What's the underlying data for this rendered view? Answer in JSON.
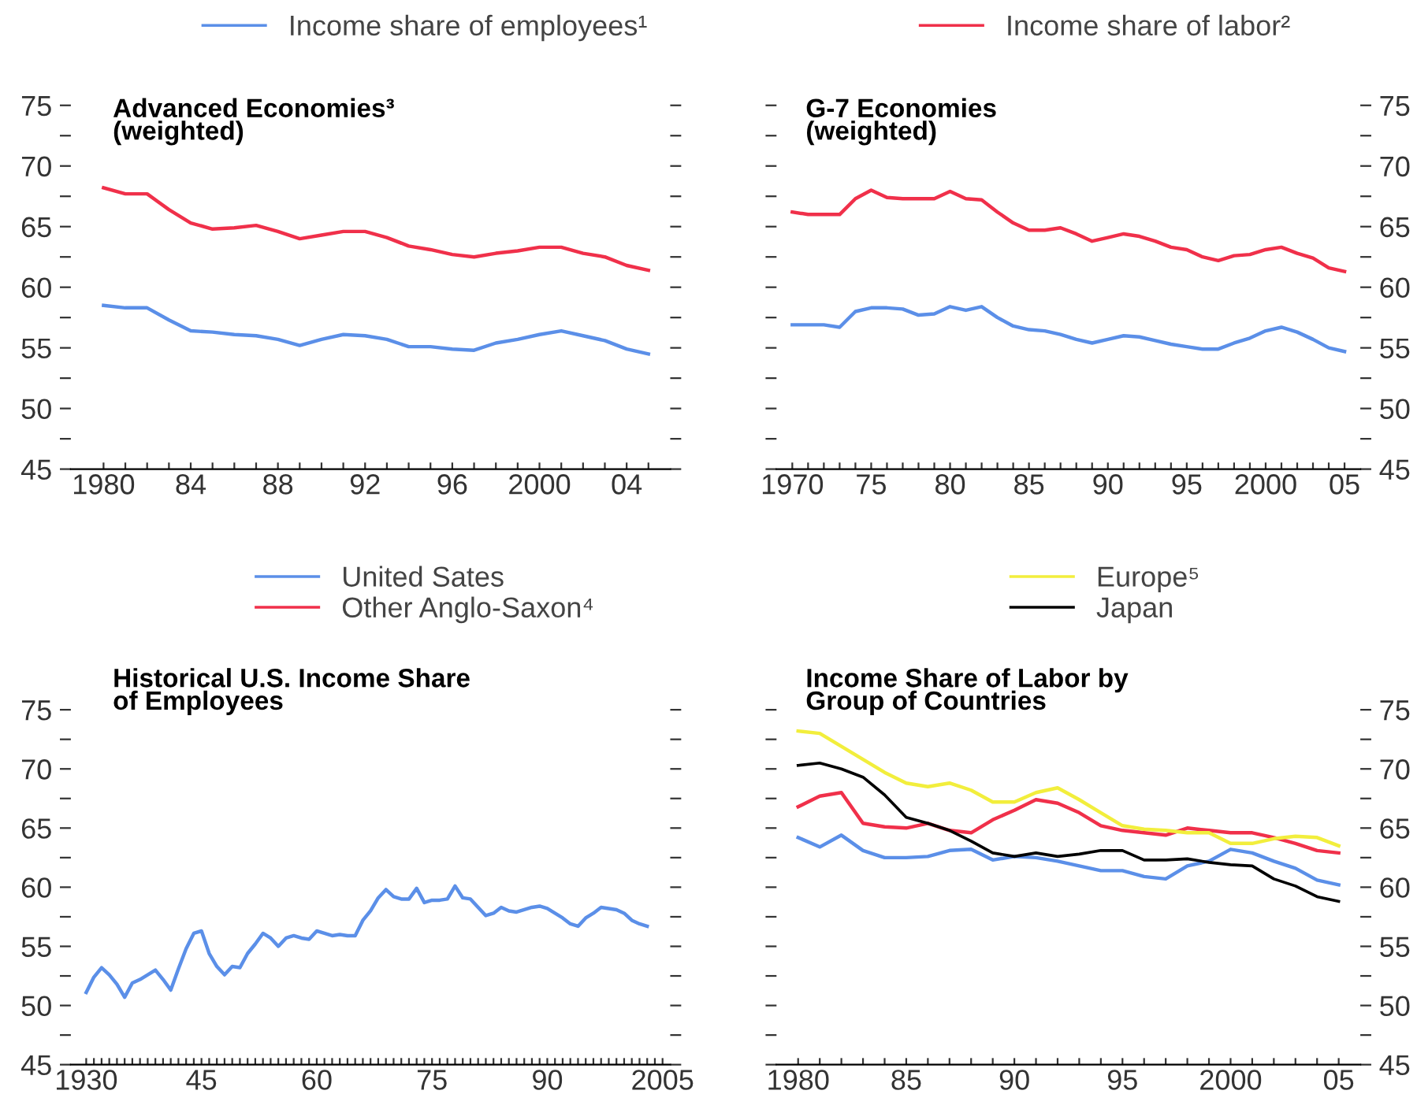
{
  "chart_data": [
    {
      "type": "line",
      "title": "Advanced Economies³\n(weighted)",
      "legend": "top",
      "x": [
        1980,
        1981,
        1982,
        1983,
        1984,
        1985,
        1986,
        1987,
        1988,
        1989,
        1990,
        1991,
        1992,
        1993,
        1994,
        1995,
        1996,
        1997,
        1998,
        1999,
        2000,
        2001,
        2002,
        2003,
        2004,
        2005
      ],
      "series": [
        {
          "name": "Income share of employees¹",
          "color": "#5b8fe8",
          "values": [
            58.5,
            58.3,
            58.3,
            57.3,
            56.4,
            56.3,
            56.1,
            56.0,
            55.7,
            55.2,
            55.7,
            56.1,
            56.0,
            55.7,
            55.1,
            55.1,
            54.9,
            54.8,
            55.4,
            55.7,
            56.1,
            56.4,
            56.0,
            55.6,
            54.9,
            54.5
          ]
        },
        {
          "name": "Income share of labor²",
          "color": "#f0304a",
          "values": [
            68.2,
            67.7,
            67.7,
            66.4,
            65.3,
            64.8,
            64.9,
            65.1,
            64.6,
            64.0,
            64.3,
            64.6,
            64.6,
            64.1,
            63.4,
            63.1,
            62.7,
            62.5,
            62.8,
            63.0,
            63.3,
            63.3,
            62.8,
            62.5,
            61.8,
            61.4
          ]
        }
      ],
      "xlim": [
        1978.5,
        2006
      ],
      "xticks": [
        1980,
        {
          "value": 1981,
          "label": null
        },
        {
          "value": 1982,
          "label": null
        },
        {
          "value": 1983,
          "label": null
        },
        {
          "value": 1984,
          "label": "84"
        },
        {
          "value": 1985,
          "label": null
        },
        {
          "value": 1986,
          "label": null
        },
        {
          "value": 1987,
          "label": null
        },
        {
          "value": 1988,
          "label": "88"
        },
        {
          "value": 1989,
          "label": null
        },
        {
          "value": 1990,
          "label": null
        },
        {
          "value": 1991,
          "label": null
        },
        {
          "value": 1992,
          "label": "92"
        },
        {
          "value": 1993,
          "label": null
        },
        {
          "value": 1994,
          "label": null
        },
        {
          "value": 1995,
          "label": null
        },
        {
          "value": 1996,
          "label": "96"
        },
        {
          "value": 1997,
          "label": null
        },
        {
          "value": 1998,
          "label": null
        },
        {
          "value": 1999,
          "label": null
        },
        2000,
        {
          "value": 2001,
          "label": null
        },
        {
          "value": 2002,
          "label": null
        },
        {
          "value": 2003,
          "label": null
        },
        {
          "value": 2004,
          "label": "04"
        },
        {
          "value": 2005,
          "label": null
        }
      ],
      "ylim": [
        45,
        75
      ],
      "yticks": [
        45,
        {
          "value": 47.5,
          "label": null
        },
        50,
        {
          "value": 52.5,
          "label": null
        },
        55,
        {
          "value": 57.5,
          "label": null
        },
        60,
        {
          "value": 62.5,
          "label": null
        },
        65,
        {
          "value": 67.5,
          "label": null
        },
        70,
        {
          "value": 72.5,
          "label": null
        },
        75
      ]
    },
    {
      "type": "line",
      "title": "G-7 Economies\n(weighted)",
      "x": [
        1970,
        1971,
        1972,
        1973,
        1974,
        1975,
        1976,
        1977,
        1978,
        1979,
        1980,
        1981,
        1982,
        1983,
        1984,
        1985,
        1986,
        1987,
        1988,
        1989,
        1990,
        1991,
        1992,
        1993,
        1994,
        1995,
        1996,
        1997,
        1998,
        1999,
        2000,
        2001,
        2002,
        2003,
        2004,
        2005
      ],
      "series": [
        {
          "color": "#5b8fe8",
          "values": [
            56.9,
            56.9,
            56.9,
            56.7,
            58.0,
            58.3,
            58.3,
            58.2,
            57.7,
            57.8,
            58.4,
            58.1,
            58.4,
            57.5,
            56.8,
            56.5,
            56.4,
            56.1,
            55.7,
            55.4,
            55.7,
            56.0,
            55.9,
            55.6,
            55.3,
            55.1,
            54.9,
            54.9,
            55.4,
            55.8,
            56.4,
            56.7,
            56.3,
            55.7,
            55.0,
            54.7
          ]
        },
        {
          "color": "#f0304a",
          "values": [
            66.2,
            66.0,
            66.0,
            66.0,
            67.3,
            68.0,
            67.4,
            67.3,
            67.3,
            67.3,
            67.9,
            67.3,
            67.2,
            66.2,
            65.3,
            64.7,
            64.7,
            64.9,
            64.4,
            63.8,
            64.1,
            64.4,
            64.2,
            63.8,
            63.3,
            63.1,
            62.5,
            62.2,
            62.6,
            62.7,
            63.1,
            63.3,
            62.8,
            62.4,
            61.6,
            61.3
          ]
        }
      ],
      "xlim": [
        1969,
        2006
      ],
      "xticks": [
        1970,
        {
          "value": 1971,
          "label": null
        },
        {
          "value": 1972,
          "label": null
        },
        {
          "value": 1973,
          "label": null
        },
        {
          "value": 1974,
          "label": null
        },
        {
          "value": 1975,
          "label": "75"
        },
        {
          "value": 1976,
          "label": null
        },
        {
          "value": 1977,
          "label": null
        },
        {
          "value": 1978,
          "label": null
        },
        {
          "value": 1979,
          "label": null
        },
        {
          "value": 1980,
          "label": "80"
        },
        {
          "value": 1981,
          "label": null
        },
        {
          "value": 1982,
          "label": null
        },
        {
          "value": 1983,
          "label": null
        },
        {
          "value": 1984,
          "label": null
        },
        {
          "value": 1985,
          "label": "85"
        },
        {
          "value": 1986,
          "label": null
        },
        {
          "value": 1987,
          "label": null
        },
        {
          "value": 1988,
          "label": null
        },
        {
          "value": 1989,
          "label": null
        },
        {
          "value": 1990,
          "label": "90"
        },
        {
          "value": 1991,
          "label": null
        },
        {
          "value": 1992,
          "label": null
        },
        {
          "value": 1993,
          "label": null
        },
        {
          "value": 1994,
          "label": null
        },
        {
          "value": 1995,
          "label": "95"
        },
        {
          "value": 1996,
          "label": null
        },
        {
          "value": 1997,
          "label": null
        },
        {
          "value": 1998,
          "label": null
        },
        {
          "value": 1999,
          "label": null
        },
        2000,
        {
          "value": 2001,
          "label": null
        },
        {
          "value": 2002,
          "label": null
        },
        {
          "value": 2003,
          "label": null
        },
        {
          "value": 2004,
          "label": null
        },
        {
          "value": 2005,
          "label": "05"
        }
      ],
      "ylim": [
        45,
        75
      ],
      "yticks": [
        45,
        {
          "value": 47.5,
          "label": null
        },
        50,
        {
          "value": 52.5,
          "label": null
        },
        55,
        {
          "value": 57.5,
          "label": null
        },
        60,
        {
          "value": 62.5,
          "label": null
        },
        65,
        {
          "value": 67.5,
          "label": null
        },
        70,
        {
          "value": 72.5,
          "label": null
        },
        75
      ]
    },
    {
      "type": "line",
      "title": "Historical U.S. Income Share\nof Employees",
      "x": [
        1930,
        1931,
        1932,
        1933,
        1934,
        1935,
        1936,
        1937,
        1938,
        1939,
        1940,
        1941,
        1942,
        1943,
        1944,
        1945,
        1946,
        1947,
        1948,
        1949,
        1950,
        1951,
        1952,
        1953,
        1954,
        1955,
        1956,
        1957,
        1958,
        1959,
        1960,
        1961,
        1962,
        1963,
        1964,
        1965,
        1966,
        1967,
        1968,
        1969,
        1970,
        1971,
        1972,
        1973,
        1974,
        1975,
        1976,
        1977,
        1978,
        1979,
        1980,
        1981,
        1982,
        1983,
        1984,
        1985,
        1986,
        1987,
        1988,
        1989,
        1990,
        1991,
        1992,
        1993,
        1994,
        1995,
        1996,
        1997,
        1998,
        1999,
        2000,
        2001,
        2002,
        2003
      ],
      "series": [
        {
          "color": "#5b8fe8",
          "values": [
            51.1,
            52.4,
            53.2,
            52.6,
            51.8,
            50.7,
            51.9,
            52.2,
            52.6,
            53.0,
            52.2,
            51.3,
            53.1,
            54.8,
            56.1,
            56.3,
            54.4,
            53.3,
            52.6,
            53.3,
            53.2,
            54.4,
            55.2,
            56.1,
            55.7,
            55.0,
            55.7,
            55.9,
            55.7,
            55.6,
            56.3,
            56.1,
            55.9,
            56.0,
            55.9,
            55.9,
            57.2,
            58.0,
            59.1,
            59.8,
            59.2,
            59.0,
            59.0,
            59.9,
            58.7,
            58.9,
            58.9,
            59.0,
            60.1,
            59.1,
            59.0,
            58.3,
            57.6,
            57.8,
            58.3,
            58.0,
            57.9,
            58.1,
            58.3,
            58.4,
            58.2,
            57.8,
            57.4,
            56.9,
            56.7,
            57.4,
            57.8,
            58.3,
            58.2,
            58.1,
            57.8,
            57.2,
            56.9,
            56.7
          ]
        }
      ],
      "xlim": [
        1928,
        2006
      ],
      "xticks": [
        1930,
        {
          "value": 1931,
          "label": null
        },
        {
          "value": 1932,
          "label": null
        },
        {
          "value": 1933,
          "label": null
        },
        {
          "value": 1934,
          "label": null
        },
        {
          "value": 1935,
          "label": null
        },
        {
          "value": 1936,
          "label": null
        },
        {
          "value": 1937,
          "label": null
        },
        {
          "value": 1938,
          "label": null
        },
        {
          "value": 1939,
          "label": null
        },
        {
          "value": 1940,
          "label": null
        },
        {
          "value": 1941,
          "label": null
        },
        {
          "value": 1942,
          "label": null
        },
        {
          "value": 1943,
          "label": null
        },
        {
          "value": 1944,
          "label": null
        },
        {
          "value": 1945,
          "label": "45"
        },
        {
          "value": 1946,
          "label": null
        },
        {
          "value": 1947,
          "label": null
        },
        {
          "value": 1948,
          "label": null
        },
        {
          "value": 1949,
          "label": null
        },
        {
          "value": 1950,
          "label": null
        },
        {
          "value": 1951,
          "label": null
        },
        {
          "value": 1952,
          "label": null
        },
        {
          "value": 1953,
          "label": null
        },
        {
          "value": 1954,
          "label": null
        },
        {
          "value": 1955,
          "label": null
        },
        {
          "value": 1956,
          "label": null
        },
        {
          "value": 1957,
          "label": null
        },
        {
          "value": 1958,
          "label": null
        },
        {
          "value": 1959,
          "label": null
        },
        {
          "value": 1960,
          "label": "60"
        },
        {
          "value": 1961,
          "label": null
        },
        {
          "value": 1962,
          "label": null
        },
        {
          "value": 1963,
          "label": null
        },
        {
          "value": 1964,
          "label": null
        },
        {
          "value": 1965,
          "label": null
        },
        {
          "value": 1966,
          "label": null
        },
        {
          "value": 1967,
          "label": null
        },
        {
          "value": 1968,
          "label": null
        },
        {
          "value": 1969,
          "label": null
        },
        {
          "value": 1970,
          "label": null
        },
        {
          "value": 1971,
          "label": null
        },
        {
          "value": 1972,
          "label": null
        },
        {
          "value": 1973,
          "label": null
        },
        {
          "value": 1974,
          "label": null
        },
        {
          "value": 1975,
          "label": "75"
        },
        {
          "value": 1976,
          "label": null
        },
        {
          "value": 1977,
          "label": null
        },
        {
          "value": 1978,
          "label": null
        },
        {
          "value": 1979,
          "label": null
        },
        {
          "value": 1980,
          "label": null
        },
        {
          "value": 1981,
          "label": null
        },
        {
          "value": 1982,
          "label": null
        },
        {
          "value": 1983,
          "label": null
        },
        {
          "value": 1984,
          "label": null
        },
        {
          "value": 1985,
          "label": null
        },
        {
          "value": 1986,
          "label": null
        },
        {
          "value": 1987,
          "label": null
        },
        {
          "value": 1988,
          "label": null
        },
        {
          "value": 1989,
          "label": null
        },
        {
          "value": 1990,
          "label": "90"
        },
        {
          "value": 1991,
          "label": null
        },
        {
          "value": 1992,
          "label": null
        },
        {
          "value": 1993,
          "label": null
        },
        {
          "value": 1994,
          "label": null
        },
        {
          "value": 1995,
          "label": null
        },
        {
          "value": 1996,
          "label": null
        },
        {
          "value": 1997,
          "label": null
        },
        {
          "value": 1998,
          "label": null
        },
        {
          "value": 1999,
          "label": null
        },
        {
          "value": 2000,
          "label": null
        },
        {
          "value": 2001,
          "label": null
        },
        {
          "value": 2002,
          "label": null
        },
        {
          "value": 2003,
          "label": null
        },
        {
          "value": 2004,
          "label": null
        },
        2005
      ],
      "ylim": [
        45,
        75
      ],
      "yticks": [
        45,
        {
          "value": 47.5,
          "label": null
        },
        50,
        {
          "value": 52.5,
          "label": null
        },
        55,
        {
          "value": 57.5,
          "label": null
        },
        60,
        {
          "value": 62.5,
          "label": null
        },
        65,
        {
          "value": 67.5,
          "label": null
        },
        70,
        {
          "value": 72.5,
          "label": null
        },
        75
      ]
    },
    {
      "type": "line",
      "title": "Income Share of Labor by\nGroup of Countries",
      "legend": "top",
      "x": [
        1980,
        1981,
        1982,
        1983,
        1984,
        1985,
        1986,
        1987,
        1988,
        1989,
        1990,
        1991,
        1992,
        1993,
        1994,
        1995,
        1996,
        1997,
        1998,
        1999,
        2000,
        2001,
        2002,
        2003,
        2004,
        2005
      ],
      "series": [
        {
          "name": "United Sates",
          "color": "#5b8fe8",
          "values": [
            64.2,
            63.4,
            64.4,
            63.1,
            62.5,
            62.5,
            62.6,
            63.1,
            63.2,
            62.3,
            62.6,
            62.5,
            62.2,
            61.8,
            61.4,
            61.4,
            60.9,
            60.7,
            61.8,
            62.2,
            63.2,
            62.9,
            62.2,
            61.6,
            60.6,
            60.2
          ]
        },
        {
          "name": "Other Anglo-Saxon⁴",
          "color": "#f0304a",
          "values": [
            66.8,
            67.7,
            68.0,
            65.4,
            65.1,
            65.0,
            65.4,
            64.8,
            64.6,
            65.7,
            66.5,
            67.4,
            67.1,
            66.3,
            65.2,
            64.8,
            64.6,
            64.4,
            65.0,
            64.8,
            64.6,
            64.6,
            64.2,
            63.7,
            63.1,
            62.9
          ]
        },
        {
          "name": "Europe⁵",
          "color": "#f2ee3c",
          "values": [
            73.2,
            73.0,
            71.9,
            70.8,
            69.7,
            68.8,
            68.5,
            68.8,
            68.2,
            67.2,
            67.2,
            68.0,
            68.4,
            67.4,
            66.3,
            65.2,
            64.9,
            64.8,
            64.6,
            64.6,
            63.7,
            63.7,
            64.1,
            64.3,
            64.2,
            63.5
          ]
        },
        {
          "name": "Japan",
          "color": "#000000",
          "values": [
            70.3,
            70.5,
            70.0,
            69.3,
            67.8,
            65.9,
            65.4,
            64.8,
            63.9,
            62.9,
            62.6,
            62.9,
            62.6,
            62.8,
            63.1,
            63.1,
            62.3,
            62.3,
            62.4,
            62.1,
            61.9,
            61.8,
            60.7,
            60.1,
            59.2,
            58.8
          ]
        }
      ],
      "xlim": [
        1979,
        2006
      ],
      "xticks": [
        1980,
        {
          "value": 1981,
          "label": null
        },
        {
          "value": 1982,
          "label": null
        },
        {
          "value": 1983,
          "label": null
        },
        {
          "value": 1984,
          "label": null
        },
        {
          "value": 1985,
          "label": "85"
        },
        {
          "value": 1986,
          "label": null
        },
        {
          "value": 1987,
          "label": null
        },
        {
          "value": 1988,
          "label": null
        },
        {
          "value": 1989,
          "label": null
        },
        {
          "value": 1990,
          "label": "90"
        },
        {
          "value": 1991,
          "label": null
        },
        {
          "value": 1992,
          "label": null
        },
        {
          "value": 1993,
          "label": null
        },
        {
          "value": 1994,
          "label": null
        },
        {
          "value": 1995,
          "label": "95"
        },
        {
          "value": 1996,
          "label": null
        },
        {
          "value": 1997,
          "label": null
        },
        {
          "value": 1998,
          "label": null
        },
        {
          "value": 1999,
          "label": null
        },
        2000,
        {
          "value": 2001,
          "label": null
        },
        {
          "value": 2002,
          "label": null
        },
        {
          "value": 2003,
          "label": null
        },
        {
          "value": 2004,
          "label": null
        },
        {
          "value": 2005,
          "label": "05"
        }
      ],
      "ylim": [
        45,
        75
      ],
      "yticks": [
        45,
        {
          "value": 47.5,
          "label": null
        },
        50,
        {
          "value": 52.5,
          "label": null
        },
        55,
        {
          "value": 57.5,
          "label": null
        },
        60,
        {
          "value": 62.5,
          "label": null
        },
        65,
        {
          "value": 67.5,
          "label": null
        },
        70,
        {
          "value": 72.5,
          "label": null
        },
        75
      ]
    }
  ]
}
